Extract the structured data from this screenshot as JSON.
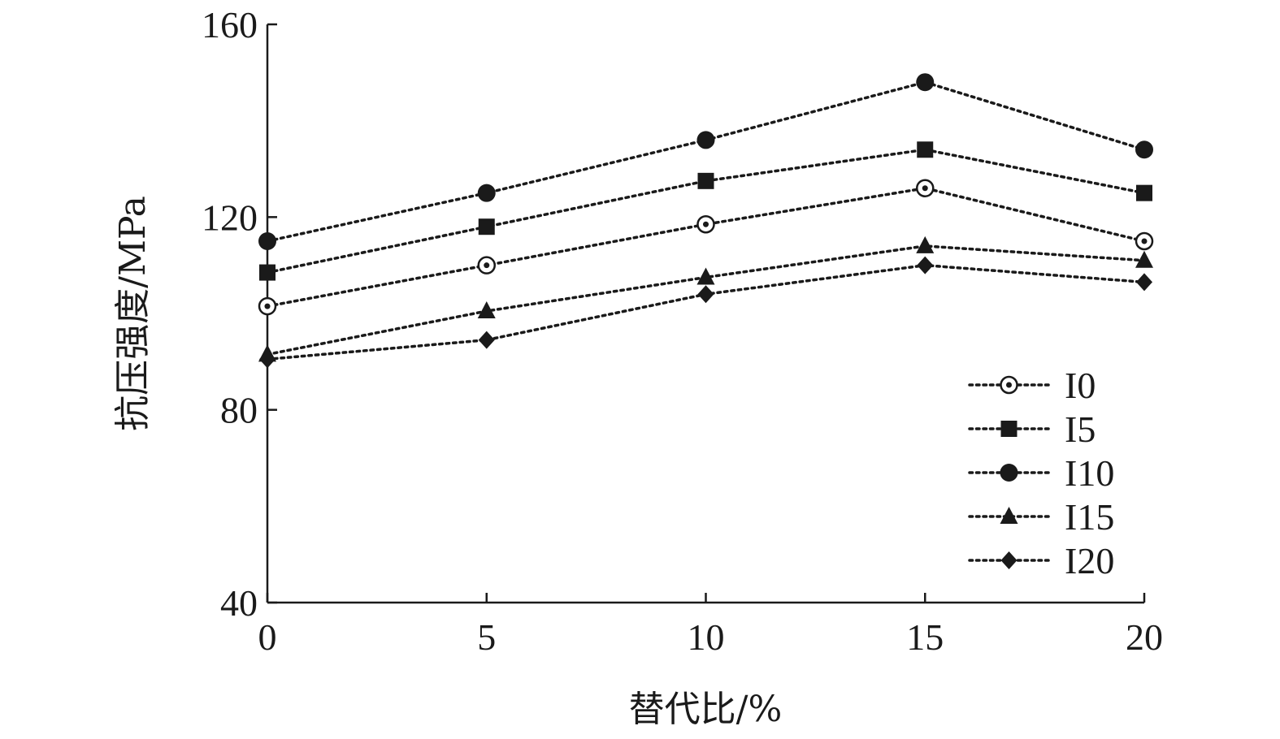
{
  "chart_data": {
    "type": "line",
    "xlabel": "替代比/%",
    "ylabel": "抗压强度/MPa",
    "x": [
      0,
      5,
      10,
      15,
      20
    ],
    "xlim": [
      0,
      20
    ],
    "ylim": [
      40,
      160
    ],
    "xticks": [
      "0",
      "5",
      "10",
      "15",
      "20"
    ],
    "yticks": [
      "40",
      "80",
      "120",
      "160"
    ],
    "grid": false,
    "legend_position": "bottom-right",
    "series": [
      {
        "name": "I0",
        "marker": "open-circle",
        "values": [
          101.5,
          110,
          118.5,
          126,
          115
        ]
      },
      {
        "name": "I5",
        "marker": "square",
        "values": [
          108.5,
          118,
          127.5,
          134,
          125
        ]
      },
      {
        "name": "I10",
        "marker": "circle",
        "values": [
          115,
          125,
          136,
          148,
          134
        ]
      },
      {
        "name": "I15",
        "marker": "triangle",
        "values": [
          91.5,
          100.5,
          107.5,
          114,
          111
        ]
      },
      {
        "name": "I20",
        "marker": "diamond",
        "values": [
          90.5,
          94.5,
          104,
          110,
          106.5
        ]
      }
    ],
    "colors": {
      "line": "#1a1a1a",
      "marker": "#1a1a1a"
    }
  }
}
